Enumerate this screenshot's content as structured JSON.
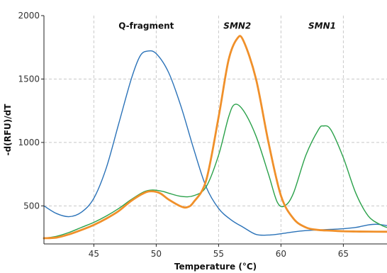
{
  "chart_data": {
    "type": "line",
    "xlabel": "Temperature (°C)",
    "ylabel": "-d(RFU)/dT",
    "xlim": [
      41,
      68.5
    ],
    "ylim": [
      200,
      2000
    ],
    "x_ticks": [
      45,
      50,
      55,
      60,
      65
    ],
    "y_ticks": [
      500,
      1000,
      1500,
      2000
    ],
    "grid": true,
    "annotations": [
      {
        "text": "Q-fragment",
        "x": 49.2,
        "y": 1920,
        "italic": false
      },
      {
        "text": "SMN2",
        "x": 56.5,
        "y": 1920,
        "italic": true
      },
      {
        "text": "SMN1",
        "x": 63.3,
        "y": 1920,
        "italic": true
      }
    ],
    "series": [
      {
        "color": "#2a72b8",
        "width": 1.4,
        "points": [
          [
            41,
            500
          ],
          [
            42,
            440
          ],
          [
            43,
            415
          ],
          [
            44,
            450
          ],
          [
            45,
            560
          ],
          [
            46,
            800
          ],
          [
            47,
            1150
          ],
          [
            48,
            1500
          ],
          [
            48.7,
            1680
          ],
          [
            49.3,
            1720
          ],
          [
            50,
            1700
          ],
          [
            51,
            1550
          ],
          [
            52,
            1280
          ],
          [
            53,
            950
          ],
          [
            54,
            650
          ],
          [
            55,
            480
          ],
          [
            56,
            390
          ],
          [
            57,
            330
          ],
          [
            58,
            275
          ],
          [
            59,
            270
          ],
          [
            60,
            280
          ],
          [
            61,
            295
          ],
          [
            62,
            305
          ],
          [
            63,
            310
          ],
          [
            64,
            315
          ],
          [
            65,
            320
          ],
          [
            66,
            330
          ],
          [
            67,
            350
          ],
          [
            67.7,
            355
          ],
          [
            68.5,
            345
          ]
        ]
      },
      {
        "color": "#2aa14a",
        "width": 1.4,
        "points": [
          [
            41,
            245
          ],
          [
            42,
            260
          ],
          [
            43,
            290
          ],
          [
            44,
            330
          ],
          [
            45,
            370
          ],
          [
            46,
            420
          ],
          [
            47,
            480
          ],
          [
            48,
            550
          ],
          [
            49,
            610
          ],
          [
            49.7,
            625
          ],
          [
            50.5,
            615
          ],
          [
            51,
            600
          ],
          [
            52,
            575
          ],
          [
            53,
            580
          ],
          [
            54,
            650
          ],
          [
            55,
            900
          ],
          [
            55.8,
            1200
          ],
          [
            56.3,
            1300
          ],
          [
            57,
            1250
          ],
          [
            58,
            1050
          ],
          [
            59,
            750
          ],
          [
            59.7,
            530
          ],
          [
            60.3,
            500
          ],
          [
            61,
            600
          ],
          [
            62,
            900
          ],
          [
            63,
            1100
          ],
          [
            63.4,
            1130
          ],
          [
            64,
            1100
          ],
          [
            65,
            880
          ],
          [
            66,
            600
          ],
          [
            67,
            420
          ],
          [
            68,
            350
          ],
          [
            68.5,
            330
          ]
        ]
      },
      {
        "color": "#f0902a",
        "width": 2.8,
        "points": [
          [
            41,
            245
          ],
          [
            42,
            250
          ],
          [
            43,
            275
          ],
          [
            44,
            310
          ],
          [
            45,
            350
          ],
          [
            46,
            400
          ],
          [
            47,
            460
          ],
          [
            48,
            540
          ],
          [
            49,
            600
          ],
          [
            49.6,
            615
          ],
          [
            50.3,
            600
          ],
          [
            51,
            550
          ],
          [
            52,
            495
          ],
          [
            52.5,
            490
          ],
          [
            53,
            530
          ],
          [
            54,
            700
          ],
          [
            55,
            1200
          ],
          [
            55.8,
            1650
          ],
          [
            56.5,
            1820
          ],
          [
            57,
            1800
          ],
          [
            58,
            1500
          ],
          [
            59,
            1000
          ],
          [
            60,
            580
          ],
          [
            61,
            400
          ],
          [
            62,
            330
          ],
          [
            63,
            310
          ],
          [
            64,
            305
          ],
          [
            65,
            300
          ],
          [
            66,
            298
          ],
          [
            67,
            297
          ],
          [
            68.5,
            296
          ]
        ]
      }
    ]
  }
}
